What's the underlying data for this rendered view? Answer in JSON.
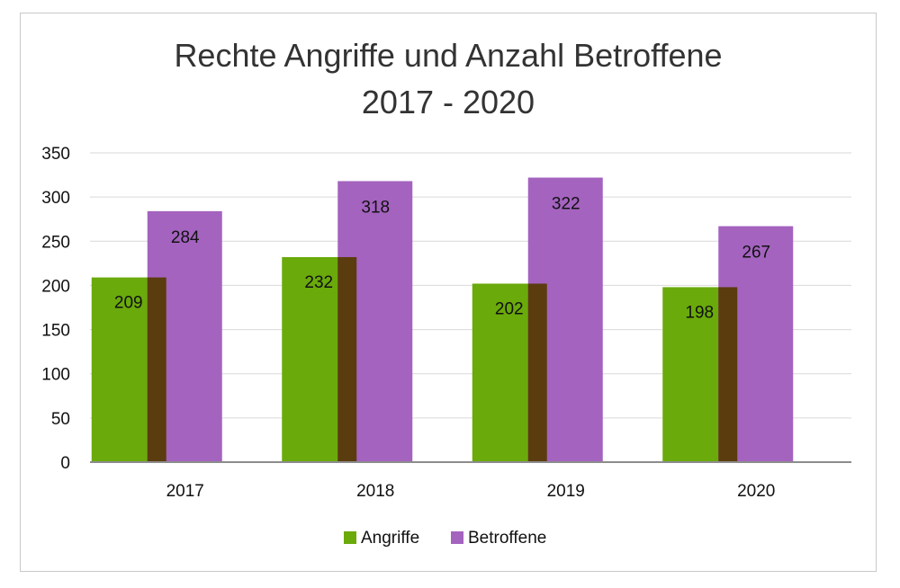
{
  "chart_data": {
    "type": "bar",
    "title": "Rechte Angriffe und Anzahl Betroffene",
    "subtitle": "2017 - 2020",
    "categories": [
      "2017",
      "2018",
      "2019",
      "2020"
    ],
    "series": [
      {
        "name": "Angriffe",
        "values": [
          209,
          232,
          202,
          198
        ],
        "color": "#6aaa0b"
      },
      {
        "name": "Betroffene",
        "values": [
          284,
          318,
          322,
          267
        ],
        "color": "#a463bf"
      }
    ],
    "overlap_color": "#5b3c0f",
    "xlabel": "",
    "ylabel": "",
    "ylim": [
      0,
      350
    ],
    "yticks": [
      0,
      50,
      100,
      150,
      200,
      250,
      300,
      350
    ],
    "grid": true,
    "legend": "bottom"
  }
}
